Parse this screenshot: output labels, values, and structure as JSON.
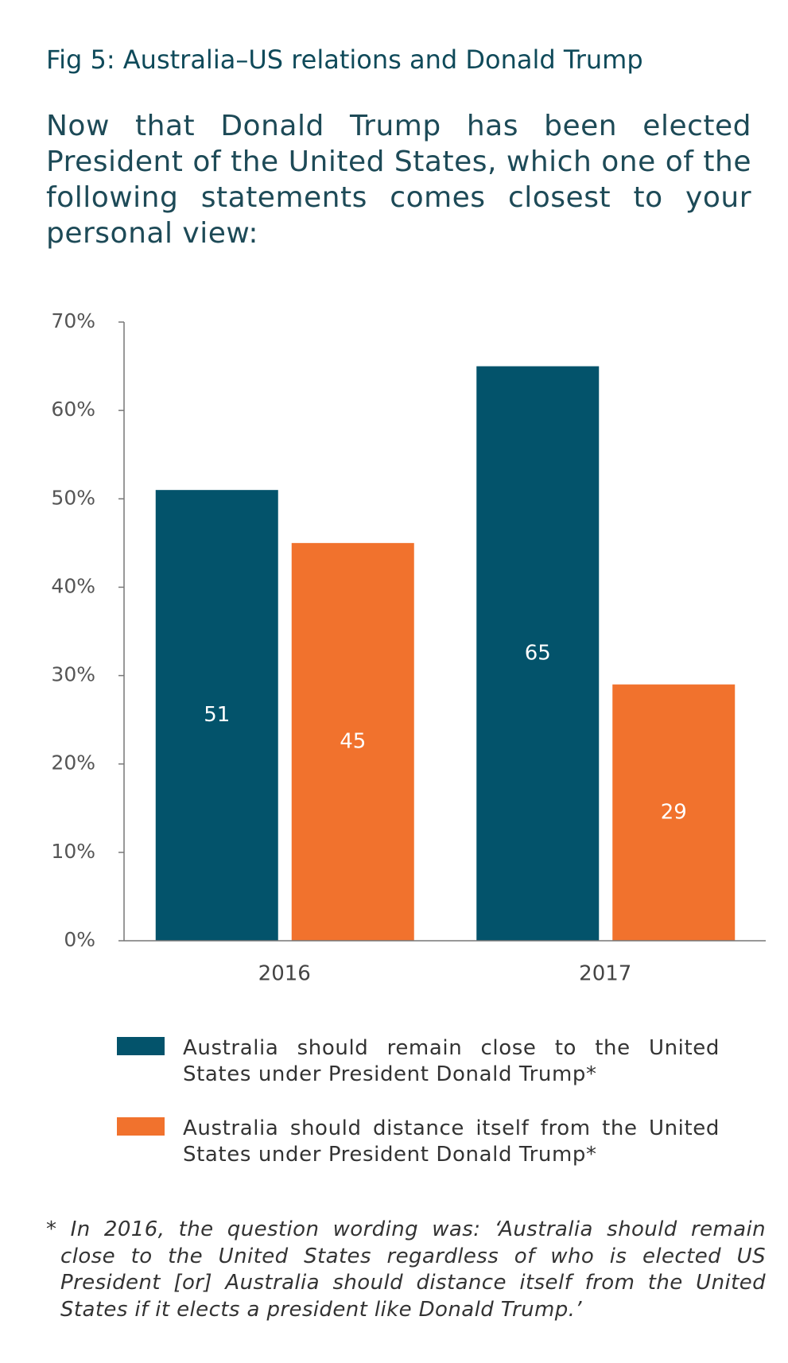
{
  "chart_data": {
    "type": "bar",
    "title": "Fig 5: Australia–US relations and Donald Trump",
    "subtitle": "Now that Donald Trump has been elected President of the United States, which one of the following statements comes closest to your personal view:",
    "categories": [
      "2016",
      "2017"
    ],
    "series": [
      {
        "name": "Australia should remain close to the United States under President Donald Trump*",
        "color": "#03536b",
        "values": [
          51,
          65
        ]
      },
      {
        "name": "Australia should distance itself from the United States under President Donald Trump*",
        "color": "#f1722d",
        "values": [
          45,
          29
        ]
      }
    ],
    "ylim": [
      0,
      70
    ],
    "yticks": [
      {
        "value": 0,
        "label": "0%"
      },
      {
        "value": 10,
        "label": "10%"
      },
      {
        "value": 20,
        "label": "20%"
      },
      {
        "value": 30,
        "label": "30%"
      },
      {
        "value": 40,
        "label": "40%"
      },
      {
        "value": 50,
        "label": "50%"
      },
      {
        "value": 60,
        "label": "60%"
      },
      {
        "value": 70,
        "label": "70%"
      }
    ],
    "footnote": "* In 2016, the question wording was: ‘Australia should remain close to the United States regardless of who is elected US President [or] Australia should distance itself from the United States if it elects a president like Donald Trump.’"
  }
}
